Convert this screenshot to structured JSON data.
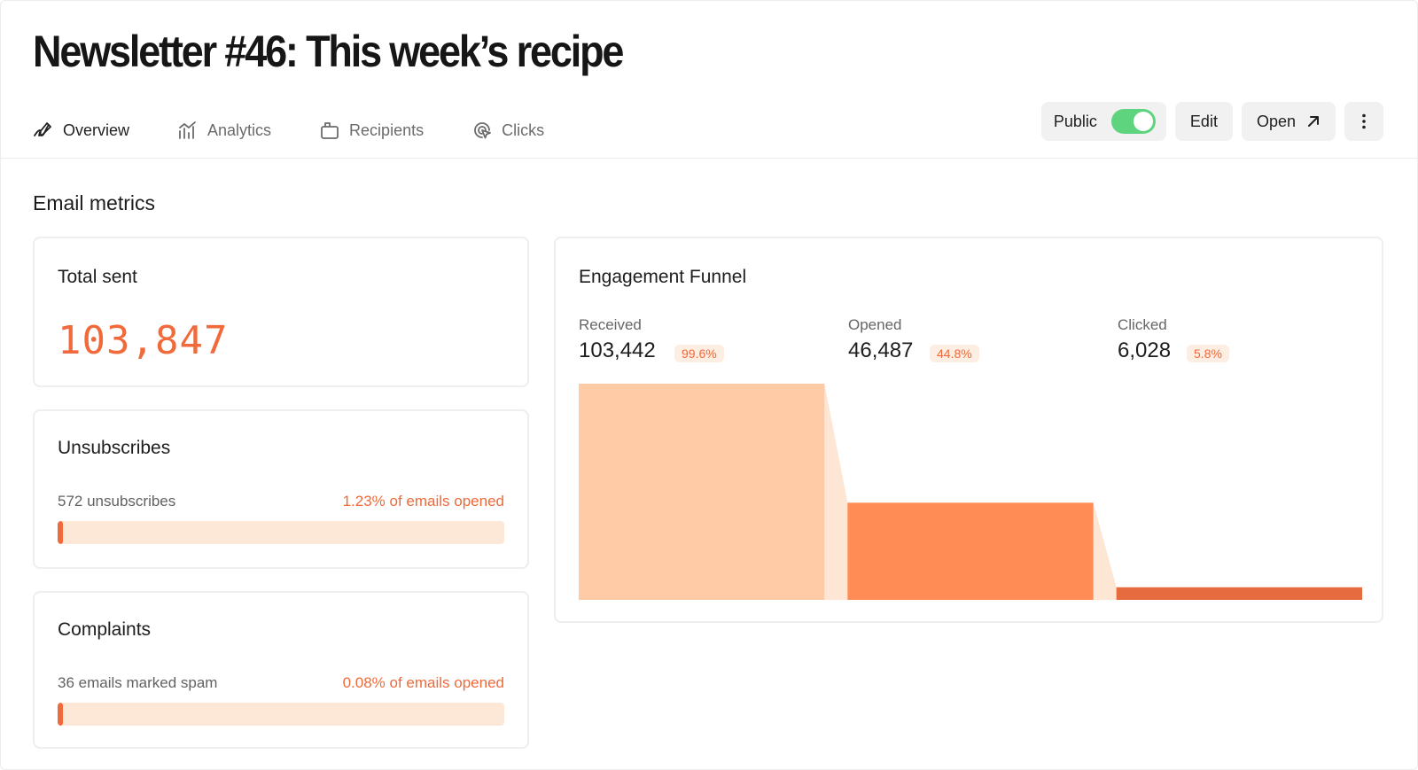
{
  "page": {
    "title": "Newsletter #46: This week’s recipe"
  },
  "tabs": [
    {
      "label": "Overview",
      "icon": "signature-icon",
      "active": true
    },
    {
      "label": "Analytics",
      "icon": "bar-chart-icon",
      "active": false
    },
    {
      "label": "Recipients",
      "icon": "recipients-icon",
      "active": false
    },
    {
      "label": "Clicks",
      "icon": "cursor-click-icon",
      "active": false
    }
  ],
  "actions": {
    "public_label": "Public",
    "public_enabled": true,
    "edit_label": "Edit",
    "open_label": "Open",
    "open_icon": "arrow-up-right-icon",
    "more_icon": "more-vertical-icon"
  },
  "section": {
    "title": "Email metrics"
  },
  "total_sent": {
    "title": "Total sent",
    "value": "103,847"
  },
  "unsubscribes": {
    "title": "Unsubscribes",
    "left_text": "572 unsubscribes",
    "right_text": "1.23% of emails opened",
    "bar_percent": 1.23
  },
  "complaints": {
    "title": "Complaints",
    "left_text": "36 emails marked spam",
    "right_text": "0.08% of emails opened",
    "bar_percent": 0.08
  },
  "funnel": {
    "title": "Engagement Funnel",
    "stages": [
      {
        "label": "Received",
        "value": "103,442",
        "pct": "99.6%",
        "count": 103442,
        "color": "#fecba6"
      },
      {
        "label": "Opened",
        "value": "46,487",
        "pct": "44.8%",
        "count": 46487,
        "color": "#ff8c55"
      },
      {
        "label": "Clicked",
        "value": "6,028",
        "pct": "5.8%",
        "count": 6028,
        "color": "#e66b3e"
      }
    ],
    "connector_color": "#fde6d4"
  },
  "colors": {
    "accent": "#ef6a3a",
    "toggle_on": "#5fd47f",
    "bar_track": "#fde7d6"
  }
}
